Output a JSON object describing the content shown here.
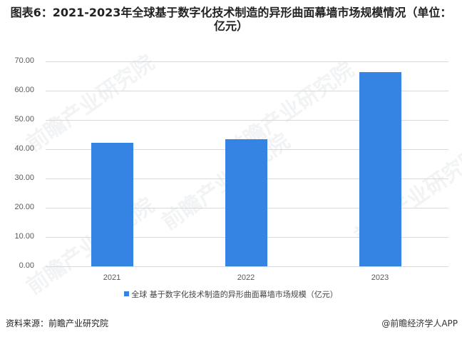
{
  "title": "图表6：2021-2023年全球基于数字化技术制造的异形曲面幕墙市场规模情况（单位：亿元）",
  "chart_data": {
    "type": "bar",
    "title": "图表6：2021-2023年全球基于数字化技术制造的异形曲面幕墙市场规模情况（单位：亿元）",
    "categories": [
      "2021",
      "2022",
      "2023"
    ],
    "series": [
      {
        "name": "全球 基于数字化技术制造的异形曲面幕墙市场规模（亿元）",
        "values": [
          42.2,
          43.4,
          66.3
        ],
        "color": "#3584e4"
      }
    ],
    "xlabel": "",
    "ylabel": "",
    "ylim": [
      0,
      70
    ],
    "yticks": [
      "0.00",
      "10.00",
      "20.00",
      "30.00",
      "40.00",
      "50.00",
      "60.00",
      "70.00"
    ],
    "grid": true,
    "legend_position": "bottom"
  },
  "axis": {
    "yticks": [
      "70.00",
      "60.00",
      "50.00",
      "40.00",
      "30.00",
      "20.00",
      "10.00",
      "0.00"
    ],
    "xticks": [
      "2021",
      "2022",
      "2023"
    ]
  },
  "legend": {
    "label": "全球 基于数字化技术制造的异形曲面幕墙市场规模（亿元）"
  },
  "footer": {
    "source": "资料来源：前瞻产业研究院",
    "credit": "@前瞻经济学人APP"
  },
  "watermark": "前瞻产业研究院"
}
